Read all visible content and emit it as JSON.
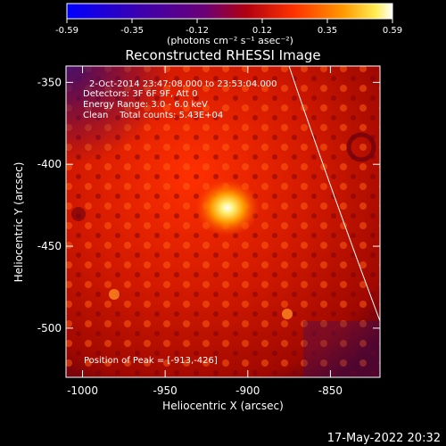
{
  "colorbar": {
    "ticks": [
      "-0.59",
      "-0.35",
      "-0.12",
      "0.12",
      "0.35",
      "0.59"
    ],
    "units": "(photons cm⁻² s⁻¹ asec⁻²)"
  },
  "title": "Reconstructed RHESSI Image",
  "info": {
    "time_range": "2-Oct-2014 23:47:08.000 to 23:53:04.000",
    "detectors": "Detectors: 3F 6F 9F, Att 0",
    "energy": "Energy Range: 3.0 - 6.0 keV",
    "clean": "Clean    Total counts: 5.43E+04"
  },
  "peak_position": "Position of Peak = [-913,-426]",
  "axes": {
    "xlabel": "Heliocentric X (arcsec)",
    "ylabel": "Heliocentric Y (arcsec)",
    "x_ticks": [
      "-1000",
      "-950",
      "-900",
      "-850"
    ],
    "y_ticks": [
      "-350",
      "-400",
      "-450",
      "-500"
    ],
    "x_range": [
      -1010,
      -820
    ],
    "y_range": [
      -530,
      -340
    ]
  },
  "footer_date": "17-May-2022 20:32",
  "colors": {
    "colormap": [
      "#0000ff",
      "#4b0082",
      "#800080",
      "#cc0000",
      "#ff3300",
      "#ff9900",
      "#ffff66",
      "#ffffff"
    ],
    "limb_line": "#ffffff"
  }
}
